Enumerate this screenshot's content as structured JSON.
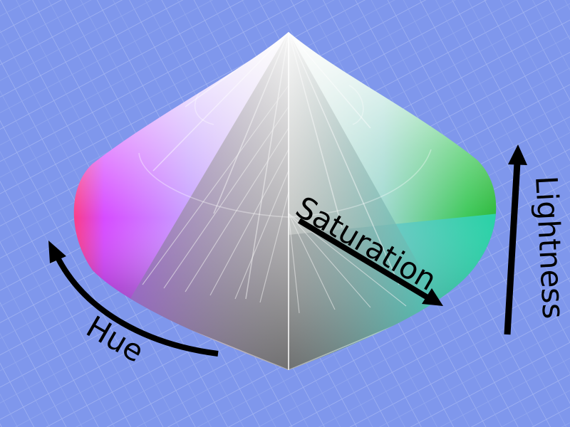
{
  "diagram": {
    "subject": "HSL double-cone color model",
    "labels": {
      "hue": "Hue",
      "saturation": "Saturation",
      "lightness": "Lightness"
    },
    "colors": {
      "background": "#7f97ec",
      "grid_line": "#a4b6f2",
      "arrow": "#000000",
      "hue_red": "#ff2a6e",
      "hue_magenta": "#b13dff",
      "hue_green": "#2fc03a",
      "hue_cyan": "#2fd8c6",
      "white_tip": "#ffffff",
      "gray_core": "#8a8a8a"
    }
  }
}
